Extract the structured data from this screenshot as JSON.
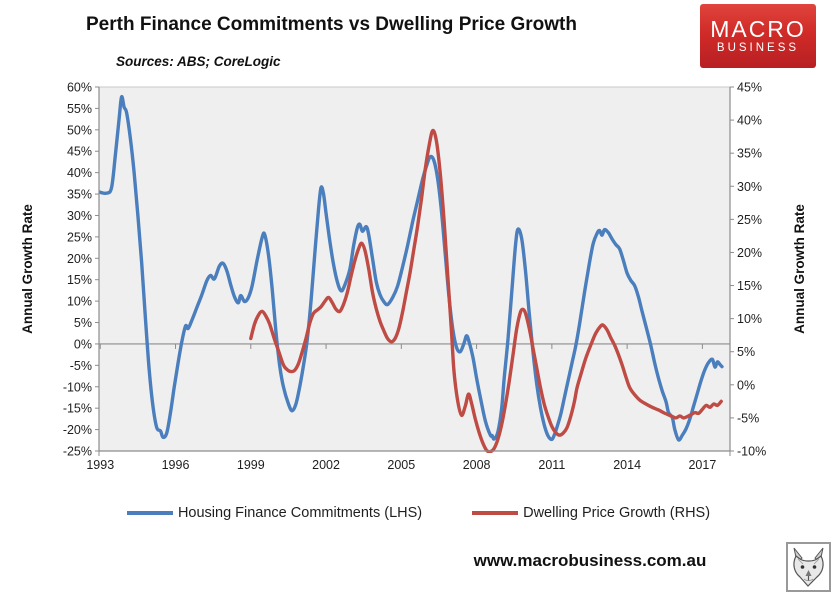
{
  "header": {
    "title": "Perth Finance Commitments vs Dwelling Price Growth",
    "logo": {
      "line1": "MACRO",
      "line2": "BUSINESS",
      "bg_color": "#c8262a"
    }
  },
  "footer": {
    "url": "www.macrobusiness.com.au",
    "wolf_logo": "wolf-icon"
  },
  "chart_data": {
    "type": "line",
    "title": "Perth Finance Commitments vs Dwelling Price Growth",
    "subtitle": "Sources: ABS; CoreLogic",
    "background_color": "#efefef",
    "grid": "zero-line-only",
    "legend_position": "bottom",
    "x_axis": {
      "min": 1992.95,
      "max": 2018.1,
      "ticks": [
        1993,
        1996,
        1999,
        2002,
        2005,
        2008,
        2011,
        2014,
        2017
      ]
    },
    "left_axis": {
      "label": "Annual Growth Rate",
      "min": -25,
      "max": 60,
      "tick_step": 5,
      "unit": "%"
    },
    "right_axis": {
      "label": "Annual Growth Rate",
      "min": -10,
      "max": 45,
      "tick_step": 5,
      "unit": "%"
    },
    "series": [
      {
        "name": "Housing Finance Commitments (LHS)",
        "axis": "left",
        "color": "#4a7ebd",
        "points": [
          [
            1992.95,
            35.5
          ],
          [
            1993.25,
            35.2
          ],
          [
            1993.45,
            36.5
          ],
          [
            1993.6,
            44
          ],
          [
            1993.75,
            52.5
          ],
          [
            1993.85,
            57.7
          ],
          [
            1993.95,
            55.3
          ],
          [
            1994.05,
            54
          ],
          [
            1994.2,
            48
          ],
          [
            1994.35,
            40
          ],
          [
            1994.5,
            30
          ],
          [
            1994.65,
            19
          ],
          [
            1994.8,
            6
          ],
          [
            1994.95,
            -6
          ],
          [
            1995.1,
            -14.5
          ],
          [
            1995.25,
            -19.5
          ],
          [
            1995.4,
            -20.3
          ],
          [
            1995.5,
            -21.8
          ],
          [
            1995.65,
            -20.8
          ],
          [
            1995.8,
            -16
          ],
          [
            1995.95,
            -10
          ],
          [
            1996.1,
            -4.5
          ],
          [
            1996.25,
            0.5
          ],
          [
            1996.4,
            4.2
          ],
          [
            1996.5,
            3.6
          ],
          [
            1996.65,
            5.5
          ],
          [
            1996.85,
            8.5
          ],
          [
            1997.05,
            11.5
          ],
          [
            1997.25,
            14.8
          ],
          [
            1997.4,
            16
          ],
          [
            1997.55,
            15.2
          ],
          [
            1997.75,
            18.2
          ],
          [
            1997.9,
            18.8
          ],
          [
            1998.05,
            17
          ],
          [
            1998.2,
            13.8
          ],
          [
            1998.35,
            11
          ],
          [
            1998.5,
            9.6
          ],
          [
            1998.6,
            11.3
          ],
          [
            1998.75,
            9.9
          ],
          [
            1998.9,
            10.8
          ],
          [
            1999.05,
            13.5
          ],
          [
            1999.25,
            19.5
          ],
          [
            1999.45,
            24.8
          ],
          [
            1999.55,
            25.6
          ],
          [
            1999.7,
            21
          ],
          [
            1999.85,
            13
          ],
          [
            2000.0,
            3
          ],
          [
            2000.15,
            -5
          ],
          [
            2000.3,
            -10
          ],
          [
            2000.5,
            -14
          ],
          [
            2000.65,
            -15.6
          ],
          [
            2000.8,
            -14
          ],
          [
            2000.95,
            -10
          ],
          [
            2001.1,
            -5
          ],
          [
            2001.25,
            1
          ],
          [
            2001.4,
            10
          ],
          [
            2001.55,
            21
          ],
          [
            2001.7,
            31.5
          ],
          [
            2001.8,
            36.5
          ],
          [
            2001.9,
            35
          ],
          [
            2002.0,
            30.5
          ],
          [
            2002.15,
            24
          ],
          [
            2002.3,
            18.5
          ],
          [
            2002.45,
            14.5
          ],
          [
            2002.6,
            12.4
          ],
          [
            2002.75,
            13.8
          ],
          [
            2002.95,
            17.5
          ],
          [
            2003.1,
            23
          ],
          [
            2003.25,
            27.2
          ],
          [
            2003.35,
            27.9
          ],
          [
            2003.45,
            26.3
          ],
          [
            2003.6,
            27.4
          ],
          [
            2003.7,
            25.5
          ],
          [
            2003.85,
            20
          ],
          [
            2004.0,
            14.5
          ],
          [
            2004.15,
            11.5
          ],
          [
            2004.3,
            9.9
          ],
          [
            2004.45,
            9.2
          ],
          [
            2004.65,
            10.8
          ],
          [
            2004.85,
            13.5
          ],
          [
            2005.05,
            18
          ],
          [
            2005.25,
            23
          ],
          [
            2005.45,
            28.5
          ],
          [
            2005.65,
            33.5
          ],
          [
            2005.85,
            38.5
          ],
          [
            2006.0,
            41.5
          ],
          [
            2006.15,
            43.7
          ],
          [
            2006.3,
            42.8
          ],
          [
            2006.45,
            38.5
          ],
          [
            2006.6,
            31
          ],
          [
            2006.75,
            21
          ],
          [
            2006.9,
            11
          ],
          [
            2007.05,
            3.5
          ],
          [
            2007.2,
            -0.8
          ],
          [
            2007.35,
            -1.8
          ],
          [
            2007.5,
            0.2
          ],
          [
            2007.6,
            1.9
          ],
          [
            2007.7,
            0.5
          ],
          [
            2007.85,
            -3
          ],
          [
            2008.0,
            -8
          ],
          [
            2008.15,
            -12.5
          ],
          [
            2008.35,
            -18
          ],
          [
            2008.55,
            -21.3
          ],
          [
            2008.62,
            -21.4
          ],
          [
            2008.7,
            -22.2
          ],
          [
            2008.85,
            -20.5
          ],
          [
            2009.0,
            -15
          ],
          [
            2009.1,
            -8
          ],
          [
            2009.25,
            1
          ],
          [
            2009.4,
            12
          ],
          [
            2009.55,
            23
          ],
          [
            2009.65,
            26.8
          ],
          [
            2009.8,
            24.5
          ],
          [
            2009.95,
            17
          ],
          [
            2010.1,
            7
          ],
          [
            2010.25,
            -2
          ],
          [
            2010.4,
            -9.5
          ],
          [
            2010.55,
            -15
          ],
          [
            2010.7,
            -19
          ],
          [
            2010.85,
            -21.5
          ],
          [
            2011.0,
            -22.3
          ],
          [
            2011.1,
            -21.2
          ],
          [
            2011.2,
            -19.5
          ],
          [
            2011.35,
            -16.5
          ],
          [
            2011.5,
            -12.5
          ],
          [
            2011.65,
            -8.5
          ],
          [
            2011.8,
            -4.5
          ],
          [
            2011.95,
            -0.5
          ],
          [
            2012.1,
            4.5
          ],
          [
            2012.3,
            12
          ],
          [
            2012.5,
            19
          ],
          [
            2012.65,
            23.5
          ],
          [
            2012.8,
            25.8
          ],
          [
            2012.9,
            26.5
          ],
          [
            2013.0,
            25.4
          ],
          [
            2013.1,
            26.7
          ],
          [
            2013.25,
            26.0
          ],
          [
            2013.4,
            24.5
          ],
          [
            2013.55,
            23.2
          ],
          [
            2013.7,
            22.2
          ],
          [
            2013.85,
            19.5
          ],
          [
            2014.0,
            16.5
          ],
          [
            2014.15,
            14.8
          ],
          [
            2014.3,
            13.6
          ],
          [
            2014.45,
            11
          ],
          [
            2014.6,
            7.5
          ],
          [
            2014.8,
            3
          ],
          [
            2014.95,
            -0.5
          ],
          [
            2015.1,
            -4.5
          ],
          [
            2015.25,
            -8
          ],
          [
            2015.4,
            -11
          ],
          [
            2015.55,
            -13.5
          ],
          [
            2015.65,
            -16
          ],
          [
            2015.8,
            -17.2
          ],
          [
            2015.9,
            -20
          ],
          [
            2016.05,
            -22.4
          ],
          [
            2016.2,
            -21.3
          ],
          [
            2016.35,
            -19.8
          ],
          [
            2016.5,
            -17.5
          ],
          [
            2016.65,
            -14.5
          ],
          [
            2016.8,
            -11.5
          ],
          [
            2016.95,
            -8.5
          ],
          [
            2017.1,
            -6
          ],
          [
            2017.25,
            -4.3
          ],
          [
            2017.4,
            -3.6
          ],
          [
            2017.5,
            -5.4
          ],
          [
            2017.6,
            -4.2
          ],
          [
            2017.7,
            -4.8
          ],
          [
            2017.78,
            -5.3
          ]
        ]
      },
      {
        "name": "Dwelling Price Growth (RHS)",
        "axis": "right",
        "color": "#bf4b45",
        "points": [
          [
            1999.0,
            7.0
          ],
          [
            1999.15,
            9.2
          ],
          [
            1999.3,
            10.5
          ],
          [
            1999.45,
            11.1
          ],
          [
            1999.6,
            10.4
          ],
          [
            1999.75,
            9.2
          ],
          [
            1999.95,
            6.8
          ],
          [
            2000.1,
            5.2
          ],
          [
            2000.3,
            3.0
          ],
          [
            2000.45,
            2.3
          ],
          [
            2000.6,
            2.0
          ],
          [
            2000.75,
            2.2
          ],
          [
            2000.9,
            3.2
          ],
          [
            2001.05,
            5.0
          ],
          [
            2001.2,
            7.0
          ],
          [
            2001.35,
            9.3
          ],
          [
            2001.5,
            10.8
          ],
          [
            2001.65,
            11.3
          ],
          [
            2001.8,
            11.8
          ],
          [
            2001.95,
            12.6
          ],
          [
            2002.1,
            13.2
          ],
          [
            2002.25,
            12.4
          ],
          [
            2002.4,
            11.4
          ],
          [
            2002.55,
            11.1
          ],
          [
            2002.7,
            12.2
          ],
          [
            2002.85,
            14
          ],
          [
            2003.0,
            16.5
          ],
          [
            2003.15,
            18.8
          ],
          [
            2003.3,
            20.6
          ],
          [
            2003.42,
            21.4
          ],
          [
            2003.55,
            20.3
          ],
          [
            2003.7,
            17.5
          ],
          [
            2003.85,
            14
          ],
          [
            2004.0,
            11.5
          ],
          [
            2004.15,
            9.6
          ],
          [
            2004.3,
            8.2
          ],
          [
            2004.45,
            7.0
          ],
          [
            2004.6,
            6.5
          ],
          [
            2004.75,
            7.0
          ],
          [
            2004.9,
            8.5
          ],
          [
            2005.05,
            11
          ],
          [
            2005.2,
            14
          ],
          [
            2005.35,
            17
          ],
          [
            2005.5,
            20.5
          ],
          [
            2005.65,
            24
          ],
          [
            2005.8,
            28
          ],
          [
            2005.95,
            32.5
          ],
          [
            2006.1,
            36
          ],
          [
            2006.25,
            38.4
          ],
          [
            2006.4,
            36.8
          ],
          [
            2006.55,
            32
          ],
          [
            2006.7,
            25
          ],
          [
            2006.85,
            16.5
          ],
          [
            2007.0,
            8
          ],
          [
            2007.1,
            2
          ],
          [
            2007.25,
            -2.5
          ],
          [
            2007.4,
            -4.6
          ],
          [
            2007.55,
            -3.2
          ],
          [
            2007.68,
            -1.4
          ],
          [
            2007.8,
            -2.8
          ],
          [
            2007.95,
            -5.2
          ],
          [
            2008.1,
            -7.2
          ],
          [
            2008.25,
            -8.8
          ],
          [
            2008.4,
            -9.9
          ],
          [
            2008.55,
            -10.1
          ],
          [
            2008.7,
            -9.6
          ],
          [
            2008.85,
            -8.2
          ],
          [
            2009.0,
            -6.0
          ],
          [
            2009.15,
            -3.0
          ],
          [
            2009.3,
            0.5
          ],
          [
            2009.45,
            4.5
          ],
          [
            2009.6,
            8.5
          ],
          [
            2009.75,
            11.0
          ],
          [
            2009.85,
            11.4
          ],
          [
            2009.95,
            10.8
          ],
          [
            2010.1,
            8.5
          ],
          [
            2010.25,
            5.5
          ],
          [
            2010.4,
            2.5
          ],
          [
            2010.55,
            -0.5
          ],
          [
            2010.7,
            -3
          ],
          [
            2010.85,
            -4.8
          ],
          [
            2011.0,
            -6.3
          ],
          [
            2011.15,
            -7.2
          ],
          [
            2011.3,
            -7.6
          ],
          [
            2011.45,
            -7.3
          ],
          [
            2011.6,
            -6.5
          ],
          [
            2011.75,
            -4.8
          ],
          [
            2011.9,
            -2.5
          ],
          [
            2012.0,
            -0.5
          ],
          [
            2012.15,
            1.5
          ],
          [
            2012.35,
            4.0
          ],
          [
            2012.55,
            6.0
          ],
          [
            2012.75,
            7.8
          ],
          [
            2012.95,
            8.9
          ],
          [
            2013.05,
            9.0
          ],
          [
            2013.2,
            8.3
          ],
          [
            2013.35,
            7.1
          ],
          [
            2013.5,
            6.0
          ],
          [
            2013.65,
            4.6
          ],
          [
            2013.8,
            3.0
          ],
          [
            2013.95,
            1.2
          ],
          [
            2014.1,
            -0.4
          ],
          [
            2014.3,
            -1.5
          ],
          [
            2014.5,
            -2.3
          ],
          [
            2014.75,
            -2.9
          ],
          [
            2015.0,
            -3.4
          ],
          [
            2015.25,
            -3.8
          ],
          [
            2015.5,
            -4.3
          ],
          [
            2015.75,
            -4.7
          ],
          [
            2015.95,
            -5.0
          ],
          [
            2016.1,
            -4.7
          ],
          [
            2016.25,
            -5.0
          ],
          [
            2016.4,
            -4.8
          ],
          [
            2016.55,
            -4.5
          ],
          [
            2016.7,
            -4.2
          ],
          [
            2016.85,
            -4.3
          ],
          [
            2017.0,
            -3.7
          ],
          [
            2017.15,
            -3.1
          ],
          [
            2017.3,
            -3.4
          ],
          [
            2017.45,
            -2.9
          ],
          [
            2017.6,
            -3.1
          ],
          [
            2017.75,
            -2.5
          ]
        ]
      }
    ]
  }
}
